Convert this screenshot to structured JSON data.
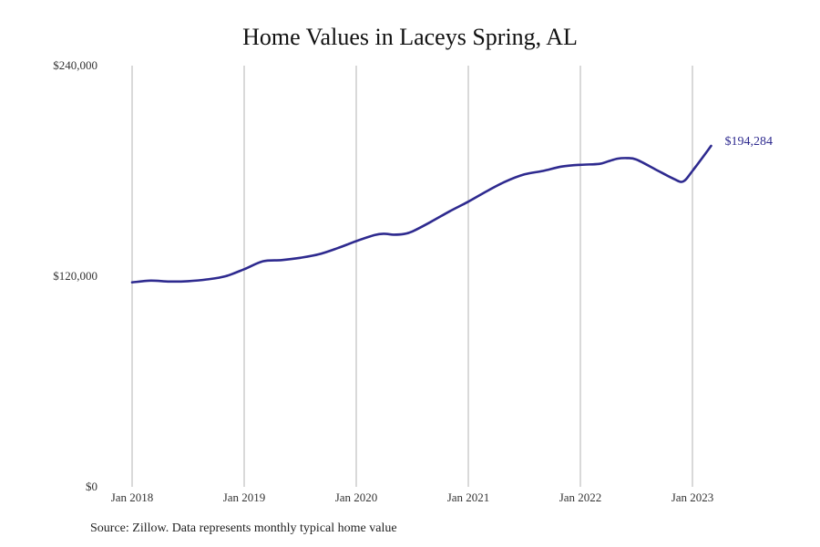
{
  "title": "Home Values in Laceys Spring, AL",
  "source": "Source: Zillow. Data represents monthly typical home value",
  "colors": {
    "line": "#2e2a8f",
    "grid": "#b3b3b3"
  },
  "chart_data": {
    "type": "line",
    "title": "Home Values in Laceys Spring, AL",
    "xlabel": "",
    "ylabel": "",
    "ylim": [
      0,
      240000
    ],
    "xlim": [
      "2018-01",
      "2023-12"
    ],
    "grid": "vertical",
    "y_ticks": [
      {
        "value": 0,
        "label": "$0"
      },
      {
        "value": 120000,
        "label": "$120,000"
      },
      {
        "value": 240000,
        "label": "$240,000"
      }
    ],
    "x_ticks": [
      {
        "value": "2018-01",
        "label": "Jan 2018"
      },
      {
        "value": "2019-01",
        "label": "Jan 2019"
      },
      {
        "value": "2020-01",
        "label": "Jan 2020"
      },
      {
        "value": "2021-01",
        "label": "Jan 2021"
      },
      {
        "value": "2022-01",
        "label": "Jan 2022"
      },
      {
        "value": "2023-01",
        "label": "Jan 2023"
      }
    ],
    "end_label": "$194,284",
    "series": [
      {
        "x": [
          "2018-01",
          "2018-03",
          "2018-05",
          "2018-07",
          "2018-09",
          "2018-11",
          "2019-01",
          "2019-03",
          "2019-05",
          "2019-07",
          "2019-09",
          "2019-11",
          "2020-01",
          "2020-03",
          "2020-04",
          "2020-05",
          "2020-06",
          "2020-07",
          "2020-09",
          "2020-11",
          "2021-01",
          "2021-03",
          "2021-05",
          "2021-07",
          "2021-09",
          "2021-11",
          "2022-01",
          "2022-03",
          "2022-04",
          "2022-05",
          "2022-06",
          "2022-07",
          "2022-09",
          "2022-11",
          "2022-12",
          "2023-01",
          "2023-03"
        ],
        "values": [
          116500,
          117500,
          117000,
          117200,
          118200,
          120000,
          124000,
          128500,
          129200,
          130500,
          132500,
          136000,
          140000,
          143500,
          144200,
          143700,
          144000,
          145500,
          151000,
          157000,
          162500,
          168500,
          174000,
          178000,
          180000,
          182500,
          183500,
          184000,
          185500,
          187000,
          187300,
          186500,
          181000,
          175500,
          174000,
          180000,
          194284
        ]
      }
    ]
  }
}
